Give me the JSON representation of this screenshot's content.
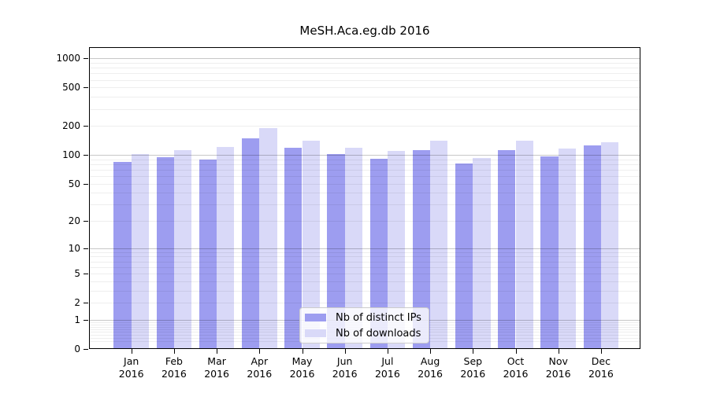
{
  "title": "MeSH.Aca.eg.db 2016",
  "chart_data": {
    "type": "bar",
    "title": "MeSH.Aca.eg.db 2016",
    "categories": [
      "Jan 2016",
      "Feb 2016",
      "Mar 2016",
      "Apr 2016",
      "May 2016",
      "Jun 2016",
      "Jul 2016",
      "Aug 2016",
      "Sep 2016",
      "Oct 2016",
      "Nov 2016",
      "Dec 2016"
    ],
    "x_tick_months": [
      "Jan",
      "Feb",
      "Mar",
      "Apr",
      "May",
      "Jun",
      "Jul",
      "Aug",
      "Sep",
      "Oct",
      "Nov",
      "Dec"
    ],
    "x_tick_year": "2016",
    "series": [
      {
        "name": "Nb of distinct IPs",
        "color": "#9d9df0",
        "values": [
          84,
          94,
          89,
          150,
          118,
          103,
          91,
          112,
          82,
          112,
          97,
          126
        ]
      },
      {
        "name": "Nb of downloads",
        "color": "#d9d9f8",
        "values": [
          102,
          113,
          122,
          190,
          140,
          118,
          110,
          141,
          93,
          141,
          117,
          136
        ]
      }
    ],
    "xlabel": "",
    "ylabel": "",
    "y_scale": "symlog-log1p",
    "y_ticks": [
      0,
      1,
      2,
      5,
      10,
      20,
      50,
      100,
      200,
      500,
      1000
    ],
    "ylim": [
      0,
      1310
    ],
    "grid": "horizontal",
    "grid_major_values": [
      1,
      10,
      100,
      1000
    ],
    "legend_position": "lower center",
    "colors": {
      "grid_major": "#c6c6c6",
      "grid_minor": "#ededed",
      "axis": "#000000",
      "background": "#ffffff",
      "legend_border": "#cccccc"
    }
  }
}
